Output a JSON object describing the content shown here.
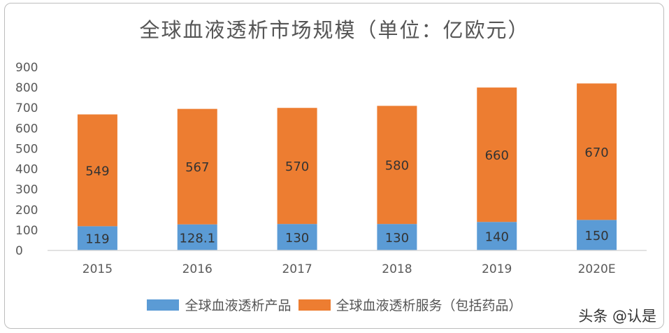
{
  "chart_data": {
    "type": "bar",
    "stacked": true,
    "title": "全球血液透析市场规模（单位：亿欧元）",
    "categories": [
      "2015",
      "2016",
      "2017",
      "2018",
      "2019",
      "2020E"
    ],
    "series": [
      {
        "name": "全球血液透析产品",
        "values": [
          119,
          128.1,
          130,
          130,
          140,
          150
        ],
        "labels": [
          "119",
          "128.1",
          "130",
          "130",
          "140",
          "150"
        ],
        "color": "#5b9bd5"
      },
      {
        "name": "全球血液透析服务（包括药品）",
        "values": [
          549,
          567,
          570,
          580,
          660,
          670
        ],
        "labels": [
          "549",
          "567",
          "570",
          "580",
          "660",
          "670"
        ],
        "color": "#ed7d31"
      }
    ],
    "ylim": [
      0,
      900
    ],
    "yticks": [
      "0",
      "100",
      "200",
      "300",
      "400",
      "500",
      "600",
      "700",
      "800",
      "900"
    ],
    "grid": false,
    "legend_position": "bottom"
  },
  "watermark": "头条 @认是"
}
